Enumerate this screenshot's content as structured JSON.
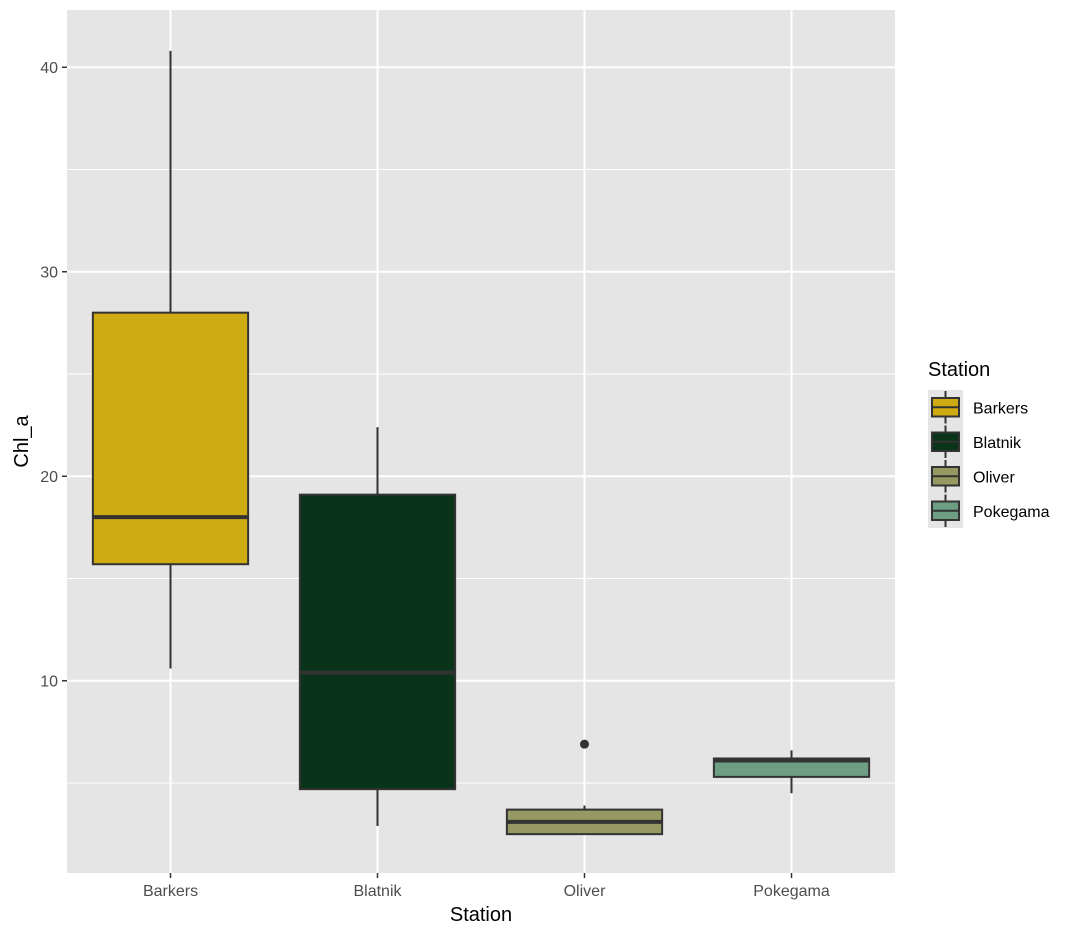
{
  "chart_data": {
    "type": "boxplot",
    "xlabel": "Station",
    "ylabel": "Chl_a",
    "categories": [
      "Barkers",
      "Blatnik",
      "Oliver",
      "Pokegama"
    ],
    "ylim": [
      0.6,
      42.8
    ],
    "yticks": [
      10,
      20,
      30,
      40
    ],
    "grid": true,
    "legend": {
      "title": "Station",
      "placement": "right",
      "entries": [
        "Barkers",
        "Blatnik",
        "Oliver",
        "Pokegama"
      ]
    },
    "colors": {
      "Barkers": "#CEAB12",
      "Blatnik": "#09341A",
      "Oliver": "#969961",
      "Pokegama": "#6D9E83",
      "panel_background": "#E5E5E5",
      "grid_line": "#FFFFFF",
      "box_outline": "#333333"
    },
    "boxes": [
      {
        "category": "Barkers",
        "whisker_low": 10.6,
        "q1": 15.7,
        "median": 18.0,
        "q3": 28.0,
        "whisker_high": 40.8,
        "outliers": []
      },
      {
        "category": "Blatnik",
        "whisker_low": 2.9,
        "q1": 4.7,
        "median": 10.4,
        "q3": 19.1,
        "whisker_high": 22.4,
        "outliers": []
      },
      {
        "category": "Oliver",
        "whisker_low": 2.5,
        "q1": 2.5,
        "median": 3.1,
        "q3": 3.7,
        "whisker_high": 3.9,
        "outliers": [
          6.9
        ]
      },
      {
        "category": "Pokegama",
        "whisker_low": 4.5,
        "q1": 5.3,
        "median": 6.1,
        "q3": 6.2,
        "whisker_high": 6.6,
        "outliers": []
      }
    ]
  }
}
